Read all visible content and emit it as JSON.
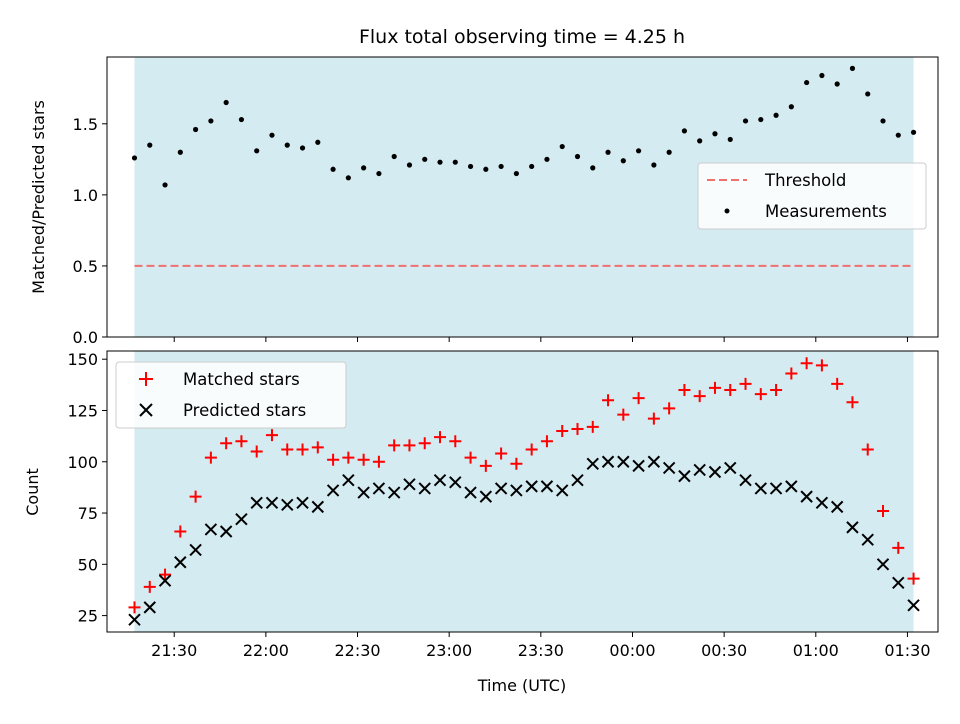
{
  "figure": {
    "title": "Flux total observing time = 4.25 h",
    "xlabel": "Time (UTC)"
  },
  "chart_data": [
    {
      "type": "scatter",
      "panel": "ratio",
      "ylabel": "Matched/Predicted stars",
      "ylim": [
        0,
        1.97
      ],
      "yticks": [
        "0.0",
        "0.5",
        "1.0",
        "1.5"
      ],
      "ytick_values": [
        0,
        0.5,
        1.0,
        1.5
      ],
      "legend_position": "center-right",
      "observing_window": {
        "start": "21:17",
        "end": "01:32",
        "color": "#d4ebf1"
      },
      "threshold": {
        "name": "Threshold",
        "value": 0.5,
        "color": "#f07070"
      },
      "series": [
        {
          "name": "Measurements",
          "color": "#000000",
          "x": [
            "21:17",
            "21:22",
            "21:27",
            "21:32",
            "21:37",
            "21:42",
            "21:47",
            "21:52",
            "21:57",
            "22:02",
            "22:07",
            "22:12",
            "22:17",
            "22:22",
            "22:27",
            "22:32",
            "22:37",
            "22:42",
            "22:47",
            "22:52",
            "22:57",
            "23:02",
            "23:07",
            "23:12",
            "23:17",
            "23:22",
            "23:27",
            "23:32",
            "23:37",
            "23:42",
            "23:47",
            "23:52",
            "23:57",
            "00:02",
            "00:07",
            "00:12",
            "00:17",
            "00:22",
            "00:27",
            "00:32",
            "00:37",
            "00:42",
            "00:47",
            "00:52",
            "00:57",
            "01:02",
            "01:07",
            "01:12",
            "01:17",
            "01:22",
            "01:27",
            "01:32"
          ],
          "y": [
            1.26,
            1.35,
            1.07,
            1.3,
            1.46,
            1.52,
            1.65,
            1.53,
            1.31,
            1.42,
            1.35,
            1.33,
            1.37,
            1.18,
            1.12,
            1.19,
            1.15,
            1.27,
            1.21,
            1.25,
            1.23,
            1.23,
            1.2,
            1.18,
            1.2,
            1.15,
            1.2,
            1.25,
            1.34,
            1.27,
            1.19,
            1.3,
            1.24,
            1.31,
            1.21,
            1.3,
            1.45,
            1.38,
            1.43,
            1.39,
            1.52,
            1.53,
            1.56,
            1.62,
            1.79,
            1.84,
            1.78,
            1.89,
            1.71,
            1.52,
            1.42,
            1.44
          ]
        }
      ]
    },
    {
      "type": "scatter",
      "panel": "counts",
      "ylabel": "Count",
      "ylim": [
        17,
        154
      ],
      "yticks": [
        "25",
        "50",
        "75",
        "100",
        "125",
        "150"
      ],
      "ytick_values": [
        25,
        50,
        75,
        100,
        125,
        150
      ],
      "legend_position": "upper-left",
      "xticks": [
        "21:30",
        "22:00",
        "22:30",
        "23:00",
        "23:30",
        "00:00",
        "00:30",
        "01:00",
        "01:30"
      ],
      "series": [
        {
          "name": "Matched stars",
          "marker": "plus",
          "color": "#ff0000",
          "x": [
            "21:17",
            "21:22",
            "21:27",
            "21:32",
            "21:37",
            "21:42",
            "21:47",
            "21:52",
            "21:57",
            "22:02",
            "22:07",
            "22:12",
            "22:17",
            "22:22",
            "22:27",
            "22:32",
            "22:37",
            "22:42",
            "22:47",
            "22:52",
            "22:57",
            "23:02",
            "23:07",
            "23:12",
            "23:17",
            "23:22",
            "23:27",
            "23:32",
            "23:37",
            "23:42",
            "23:47",
            "23:52",
            "23:57",
            "00:02",
            "00:07",
            "00:12",
            "00:17",
            "00:22",
            "00:27",
            "00:32",
            "00:37",
            "00:42",
            "00:47",
            "00:52",
            "00:57",
            "01:02",
            "01:07",
            "01:12",
            "01:17",
            "01:22",
            "01:27",
            "01:32"
          ],
          "y": [
            29,
            39,
            45,
            66,
            83,
            102,
            109,
            110,
            105,
            113,
            106,
            106,
            107,
            101,
            102,
            101,
            100,
            108,
            108,
            109,
            112,
            110,
            102,
            98,
            104,
            99,
            106,
            110,
            115,
            116,
            117,
            130,
            123,
            131,
            121,
            126,
            135,
            132,
            136,
            135,
            138,
            133,
            135,
            143,
            148,
            147,
            138,
            129,
            106,
            76,
            58,
            43
          ]
        },
        {
          "name": "Predicted stars",
          "marker": "x",
          "color": "#000000",
          "x": [
            "21:17",
            "21:22",
            "21:27",
            "21:32",
            "21:37",
            "21:42",
            "21:47",
            "21:52",
            "21:57",
            "22:02",
            "22:07",
            "22:12",
            "22:17",
            "22:22",
            "22:27",
            "22:32",
            "22:37",
            "22:42",
            "22:47",
            "22:52",
            "22:57",
            "23:02",
            "23:07",
            "23:12",
            "23:17",
            "23:22",
            "23:27",
            "23:32",
            "23:37",
            "23:42",
            "23:47",
            "23:52",
            "23:57",
            "00:02",
            "00:07",
            "00:12",
            "00:17",
            "00:22",
            "00:27",
            "00:32",
            "00:37",
            "00:42",
            "00:47",
            "00:52",
            "00:57",
            "01:02",
            "01:07",
            "01:12",
            "01:17",
            "01:22",
            "01:27",
            "01:32"
          ],
          "y": [
            23,
            29,
            42,
            51,
            57,
            67,
            66,
            72,
            80,
            80,
            79,
            80,
            78,
            86,
            91,
            85,
            87,
            85,
            89,
            87,
            91,
            90,
            85,
            83,
            87,
            86,
            88,
            88,
            86,
            91,
            99,
            100,
            100,
            98,
            100,
            97,
            93,
            96,
            95,
            97,
            91,
            87,
            87,
            88,
            83,
            80,
            78,
            68,
            62,
            50,
            41,
            30
          ]
        }
      ]
    }
  ]
}
